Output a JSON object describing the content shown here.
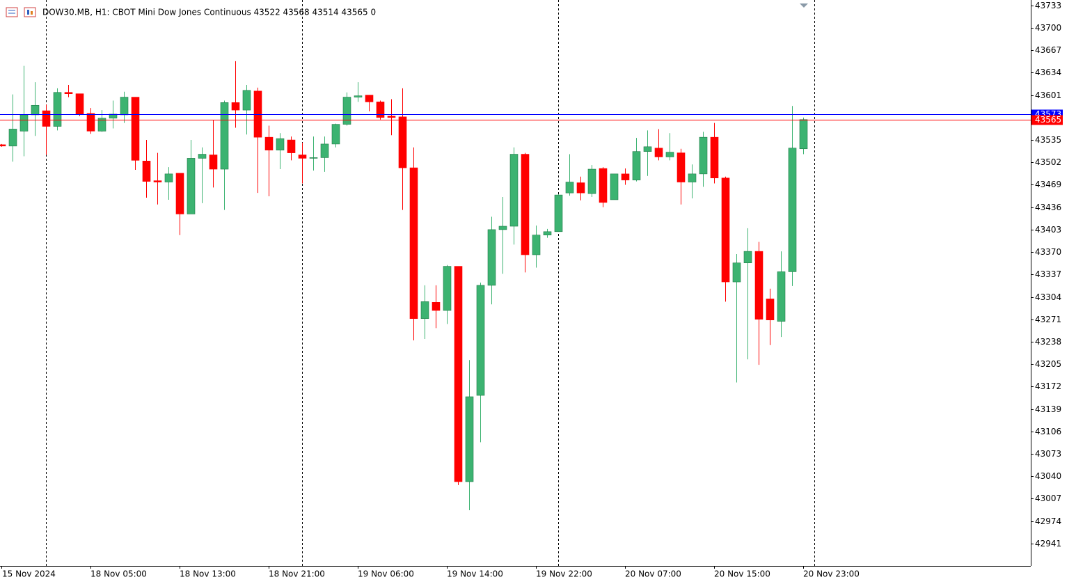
{
  "chart_data": {
    "type": "candlestick",
    "title": "DOW30.MB, H1:  CBOT Mini Dow Jones Continuous  43522 43568 43514 43565  0",
    "categories": [
      "15 Nov 2024",
      null,
      null,
      null,
      null,
      null,
      null,
      null,
      "18 Nov 05:00",
      null,
      null,
      null,
      null,
      null,
      null,
      null,
      "18 Nov 13:00",
      null,
      null,
      null,
      null,
      null,
      null,
      null,
      "18 Nov 21:00",
      null,
      null,
      null,
      null,
      null,
      null,
      null,
      "19 Nov 06:00",
      null,
      null,
      null,
      null,
      null,
      null,
      null,
      "19 Nov 14:00",
      null,
      null,
      null,
      null,
      null,
      null,
      null,
      "19 Nov 22:00",
      null,
      null,
      null,
      null,
      null,
      null,
      null,
      "20 Nov 07:00",
      null,
      null,
      null,
      null,
      null,
      null,
      null,
      "20 Nov 15:00",
      null,
      null,
      null,
      null,
      null,
      null,
      null,
      "20 Nov 23:00"
    ],
    "open": [
      43528,
      43526,
      43548,
      43572,
      43578,
      43555,
      43605,
      43603,
      43574,
      43548,
      43567,
      43572,
      43598,
      43504,
      43475,
      43473,
      43486,
      43426,
      43508,
      43513,
      43492,
      43590,
      43579,
      43607,
      43539,
      43520,
      43535,
      43513,
      43508,
      43509,
      43529,
      43558,
      43598,
      43601,
      43591,
      43570,
      43569,
      43494,
      43272,
      43296,
      43284,
      43349,
      43032,
      43159,
      43321,
      43403,
      43408,
      43514,
      43366,
      43395,
      43400,
      43457,
      43472,
      43456,
      43493,
      43447,
      43485,
      43476,
      43518,
      43523,
      43510,
      43516,
      43473,
      43485,
      43539,
      43479,
      43326,
      43354,
      43371,
      43301,
      43268,
      43341,
      43522
    ],
    "high": [
      43529,
      43602,
      43644,
      43620,
      43587,
      43611,
      43616,
      43603,
      43582,
      43579,
      43593,
      43606,
      43598,
      43535,
      43516,
      43495,
      43486,
      43535,
      43524,
      43564,
      43593,
      43651,
      43616,
      43612,
      43556,
      43545,
      43540,
      43531,
      43540,
      43540,
      43559,
      43605,
      43620,
      43601,
      43593,
      43595,
      43611,
      43524,
      43321,
      43321,
      43351,
      43349,
      43211,
      43325,
      43422,
      43451,
      43524,
      43516,
      43409,
      43404,
      43455,
      43514,
      43481,
      43498,
      43495,
      43485,
      43493,
      43538,
      43549,
      43551,
      43545,
      43522,
      43499,
      43547,
      43560,
      43481,
      43367,
      43405,
      43385,
      43316,
      43371,
      43585,
      43568
    ],
    "low": [
      43525,
      43503,
      43511,
      43541,
      43513,
      43549,
      43598,
      43570,
      43544,
      43547,
      43552,
      43560,
      43491,
      43450,
      43440,
      43447,
      43395,
      43426,
      43442,
      43465,
      43432,
      43553,
      43543,
      43457,
      43452,
      43492,
      43505,
      43471,
      43490,
      43488,
      43524,
      43556,
      43591,
      43577,
      43565,
      43542,
      43432,
      43240,
      43242,
      43258,
      43264,
      43027,
      42990,
      43090,
      43293,
      43338,
      43381,
      43340,
      43347,
      43391,
      43400,
      43453,
      43446,
      43451,
      43436,
      43447,
      43469,
      43474,
      43482,
      43505,
      43505,
      43440,
      43449,
      43466,
      43471,
      43297,
      43178,
      43212,
      43204,
      43233,
      43245,
      43320,
      43514
    ],
    "close": [
      43526,
      43551,
      43572,
      43586,
      43555,
      43605,
      43603,
      43573,
      43548,
      43567,
      43573,
      43598,
      43505,
      43474,
      43473,
      43485,
      43426,
      43508,
      43514,
      43492,
      43590,
      43579,
      43608,
      43539,
      43520,
      43537,
      43516,
      43508,
      43509,
      43529,
      43558,
      43598,
      43600,
      43591,
      43568,
      43568,
      43494,
      43272,
      43297,
      43284,
      43349,
      43032,
      43157,
      43321,
      43403,
      43408,
      43514,
      43366,
      43395,
      43400,
      43454,
      43473,
      43457,
      43492,
      43443,
      43485,
      43476,
      43518,
      43525,
      43510,
      43517,
      43473,
      43485,
      43539,
      43479,
      43326,
      43354,
      43371,
      43271,
      43270,
      43341,
      43523,
      43565
    ],
    "up_color": "#3cb371",
    "down_color": "#ff0000",
    "price_lines": [
      {
        "value": 43573,
        "color": "#0000ff"
      },
      {
        "value": 43565,
        "color": "#ff0000"
      }
    ],
    "ylim": [
      42908,
      43741
    ],
    "yticks": [
      43733,
      43700,
      43667,
      43634,
      43601,
      43535,
      43502,
      43469,
      43436,
      43403,
      43370,
      43337,
      43304,
      43271,
      43238,
      43205,
      43172,
      43139,
      43106,
      43073,
      43040,
      43007,
      42974,
      42941
    ]
  }
}
